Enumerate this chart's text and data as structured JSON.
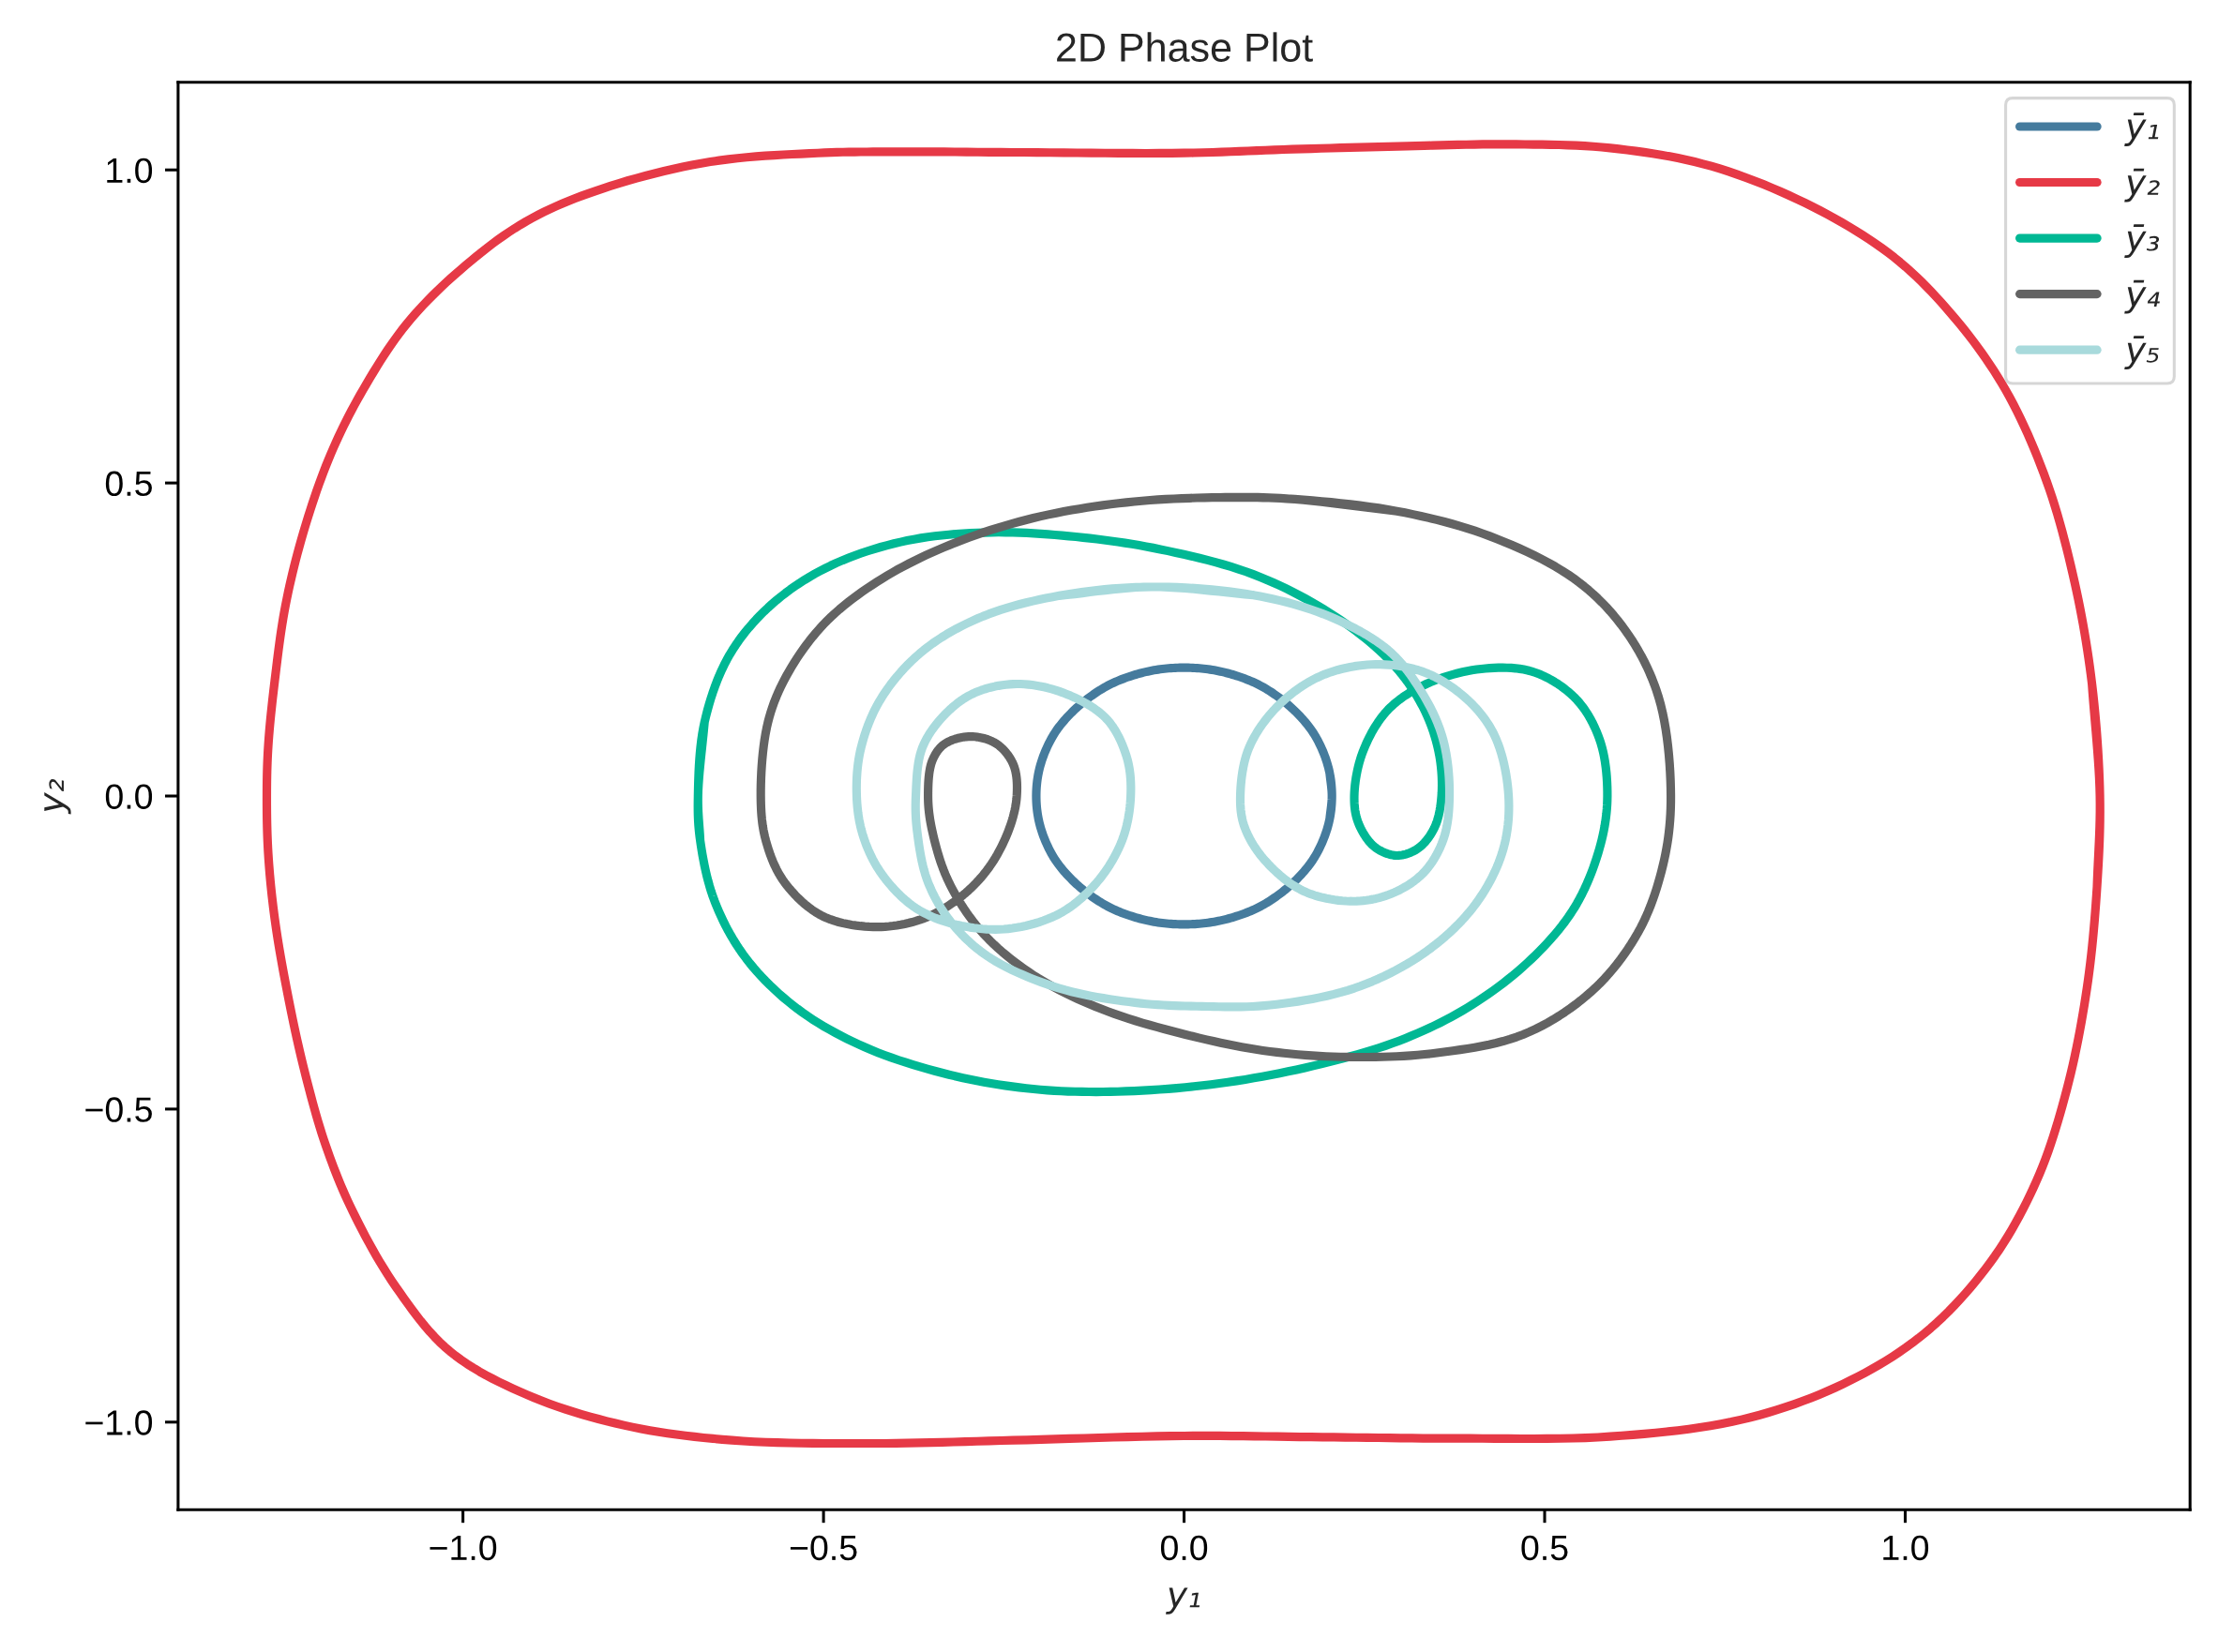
{
  "chart_data": {
    "type": "line",
    "title": "2D Phase Plot",
    "xlabel": "y₁",
    "ylabel": "y₂",
    "legend": "top right",
    "xlim": [
      -1.395,
      1.395
    ],
    "ylim": [
      -1.14,
      1.14
    ],
    "xticks": [
      {
        "value": -1.0,
        "label": "−1.0"
      },
      {
        "value": -0.5,
        "label": "−0.5"
      },
      {
        "value": 0.0,
        "label": "0.0"
      },
      {
        "value": 0.5,
        "label": "0.5"
      },
      {
        "value": 1.0,
        "label": "1.0"
      }
    ],
    "yticks": [
      {
        "value": -1.0,
        "label": "−1.0"
      },
      {
        "value": -0.5,
        "label": "−0.5"
      },
      {
        "value": 0.0,
        "label": "0.0"
      },
      {
        "value": 0.5,
        "label": "0.5"
      },
      {
        "value": 1.0,
        "label": "1.0"
      }
    ],
    "series": [
      {
        "name": "ȳ₁",
        "color": "#457b9d",
        "x": [
          0.202,
          0.205,
          0.202,
          0.193,
          0.178,
          0.157,
          0.132,
          0.103,
          0.07,
          0.036,
          0.0,
          -0.036,
          -0.07,
          -0.103,
          -0.132,
          -0.157,
          -0.178,
          -0.193,
          -0.202,
          -0.205,
          -0.202,
          -0.193,
          -0.178,
          -0.157,
          -0.132,
          -0.103,
          -0.07,
          -0.036,
          0.0,
          0.036,
          0.07,
          0.103,
          0.132,
          0.157,
          0.178,
          0.193,
          0.202,
          0.205,
          0.202
        ],
        "values": [
          -0.036,
          0.0,
          0.036,
          0.07,
          0.103,
          0.132,
          0.157,
          0.178,
          0.193,
          0.202,
          0.205,
          0.202,
          0.193,
          0.178,
          0.157,
          0.132,
          0.103,
          0.07,
          0.036,
          0.0,
          -0.036,
          -0.07,
          -0.103,
          -0.132,
          -0.157,
          -0.178,
          -0.193,
          -0.202,
          -0.205,
          -0.202,
          -0.193,
          -0.178,
          -0.157,
          -0.132,
          -0.103,
          -0.07,
          -0.036,
          0.0,
          0.036
        ]
      },
      {
        "name": "ȳ₂",
        "color": "#e63946",
        "x": [
          1.266,
          1.27,
          1.259,
          1.235,
          1.196,
          1.139,
          1.069,
          0.985,
          0.872,
          0.731,
          0.591,
          0.449,
          0.309,
          0.15,
          0.0,
          -0.222,
          -0.404,
          -0.508,
          -0.657,
          -0.807,
          -0.912,
          -1.003,
          -1.078,
          -1.138,
          -1.183,
          -1.22,
          -1.246,
          -1.261,
          -1.27,
          -1.272,
          -1.27,
          -1.261,
          -1.243,
          -1.22,
          -1.19,
          -1.153,
          -1.093,
          -1.018,
          -0.912,
          -0.777,
          -0.627,
          -0.432,
          -0.237,
          0.0,
          0.192,
          0.379,
          0.591,
          0.773,
          0.914,
          1.027,
          1.118,
          1.182,
          1.224,
          1.252,
          1.266,
          1.27,
          1.259
        ],
        "values": [
          -0.145,
          0.0,
          0.179,
          0.341,
          0.503,
          0.649,
          0.763,
          0.86,
          0.941,
          1.006,
          1.035,
          1.041,
          1.038,
          1.033,
          1.027,
          1.028,
          1.029,
          1.027,
          1.013,
          0.97,
          0.918,
          0.841,
          0.754,
          0.65,
          0.547,
          0.426,
          0.305,
          0.184,
          0.08,
          0.0,
          -0.092,
          -0.196,
          -0.317,
          -0.438,
          -0.559,
          -0.663,
          -0.784,
          -0.887,
          -0.956,
          -1.005,
          -1.029,
          -1.034,
          -1.029,
          -1.022,
          -1.024,
          -1.026,
          -1.023,
          -0.996,
          -0.939,
          -0.858,
          -0.745,
          -0.615,
          -0.469,
          -0.307,
          -0.145,
          0.0,
          0.179
        ]
      },
      {
        "name": "ȳ₃",
        "color": "#00b894",
        "x": [
          -0.671,
          -0.674,
          -0.665,
          -0.63,
          -0.571,
          -0.49,
          -0.384,
          -0.267,
          -0.15,
          -0.033,
          0.096,
          0.201,
          0.283,
          0.33,
          0.353,
          0.357,
          0.347,
          0.324,
          0.295,
          0.265,
          0.242,
          0.236,
          0.248,
          0.283,
          0.336,
          0.412,
          0.482,
          0.541,
          0.576,
          0.587,
          0.576,
          0.541,
          0.482,
          0.4,
          0.307,
          0.19,
          0.049,
          -0.092,
          -0.209,
          -0.326,
          -0.443,
          -0.536,
          -0.607,
          -0.651,
          -0.671,
          -0.674,
          -0.665
        ],
        "values": [
          -0.071,
          0.0,
          0.118,
          0.226,
          0.307,
          0.368,
          0.408,
          0.421,
          0.414,
          0.394,
          0.354,
          0.293,
          0.219,
          0.145,
          0.071,
          0.0,
          -0.051,
          -0.084,
          -0.095,
          -0.082,
          -0.044,
          0.0,
          0.071,
          0.138,
          0.179,
          0.203,
          0.199,
          0.158,
          0.091,
          0.0,
          -0.084,
          -0.179,
          -0.26,
          -0.333,
          -0.387,
          -0.428,
          -0.459,
          -0.472,
          -0.468,
          -0.445,
          -0.401,
          -0.34,
          -0.26,
          -0.168,
          -0.071,
          0.0,
          0.118
        ]
      },
      {
        "name": "ȳ₄",
        "color": "#636363",
        "x": [
          0.049,
          0.142,
          0.295,
          0.424,
          0.541,
          0.611,
          0.658,
          0.675,
          0.664,
          0.629,
          0.564,
          0.47,
          0.353,
          0.236,
          0.119,
          0.002,
          -0.115,
          -0.209,
          -0.279,
          -0.326,
          -0.349,
          -0.355,
          -0.349,
          -0.331,
          -0.296,
          -0.261,
          -0.237,
          -0.232,
          -0.244,
          -0.273,
          -0.314,
          -0.367,
          -0.431,
          -0.501,
          -0.554,
          -0.58,
          -0.587,
          -0.577,
          -0.548,
          -0.495,
          -0.419,
          -0.325,
          -0.209,
          -0.08,
          0.049,
          0.142,
          0.295
        ],
        "values": [
          0.477,
          0.475,
          0.455,
          0.415,
          0.347,
          0.266,
          0.158,
          0.0,
          -0.111,
          -0.219,
          -0.313,
          -0.381,
          -0.41,
          -0.417,
          -0.408,
          -0.381,
          -0.34,
          -0.286,
          -0.219,
          -0.138,
          -0.057,
          0.0,
          0.057,
          0.084,
          0.095,
          0.084,
          0.051,
          0.0,
          -0.057,
          -0.118,
          -0.165,
          -0.198,
          -0.209,
          -0.192,
          -0.138,
          -0.071,
          0.0,
          0.118,
          0.199,
          0.28,
          0.347,
          0.401,
          0.444,
          0.469,
          0.477,
          0.475,
          0.455
        ]
      },
      {
        "name": "ȳ₅",
        "color": "#a8dadc",
        "x": [
          -0.173,
          -0.045,
          0.096,
          0.201,
          0.283,
          0.33,
          0.359,
          0.368,
          0.359,
          0.33,
          0.283,
          0.23,
          0.166,
          0.113,
          0.084,
          0.078,
          0.09,
          0.131,
          0.19,
          0.26,
          0.33,
          0.389,
          0.43,
          0.45,
          0.441,
          0.4,
          0.33,
          0.236,
          0.119,
          0.025,
          -0.068,
          -0.173,
          -0.267,
          -0.32,
          -0.355,
          -0.37,
          -0.372,
          -0.363,
          -0.331,
          -0.29,
          -0.232,
          -0.168,
          -0.109,
          -0.08,
          -0.074,
          -0.086,
          -0.121,
          -0.173,
          -0.244,
          -0.314,
          -0.372,
          -0.419,
          -0.445,
          -0.454,
          -0.448,
          -0.419,
          -0.361,
          -0.279,
          -0.173,
          -0.045,
          0.096
        ],
        "values": [
          0.32,
          0.334,
          0.321,
          0.287,
          0.233,
          0.165,
          0.091,
          0.0,
          -0.071,
          -0.125,
          -0.158,
          -0.168,
          -0.152,
          -0.104,
          -0.05,
          0.0,
          0.077,
          0.145,
          0.192,
          0.21,
          0.199,
          0.158,
          0.098,
          0.0,
          -0.091,
          -0.179,
          -0.253,
          -0.307,
          -0.334,
          -0.336,
          -0.33,
          -0.307,
          -0.26,
          -0.206,
          -0.138,
          -0.058,
          0.0,
          0.077,
          0.131,
          0.165,
          0.179,
          0.165,
          0.125,
          0.064,
          0.0,
          -0.071,
          -0.138,
          -0.188,
          -0.212,
          -0.206,
          -0.179,
          -0.125,
          -0.064,
          0.0,
          0.077,
          0.158,
          0.233,
          0.287,
          0.32,
          0.334,
          0.321
        ]
      }
    ]
  }
}
